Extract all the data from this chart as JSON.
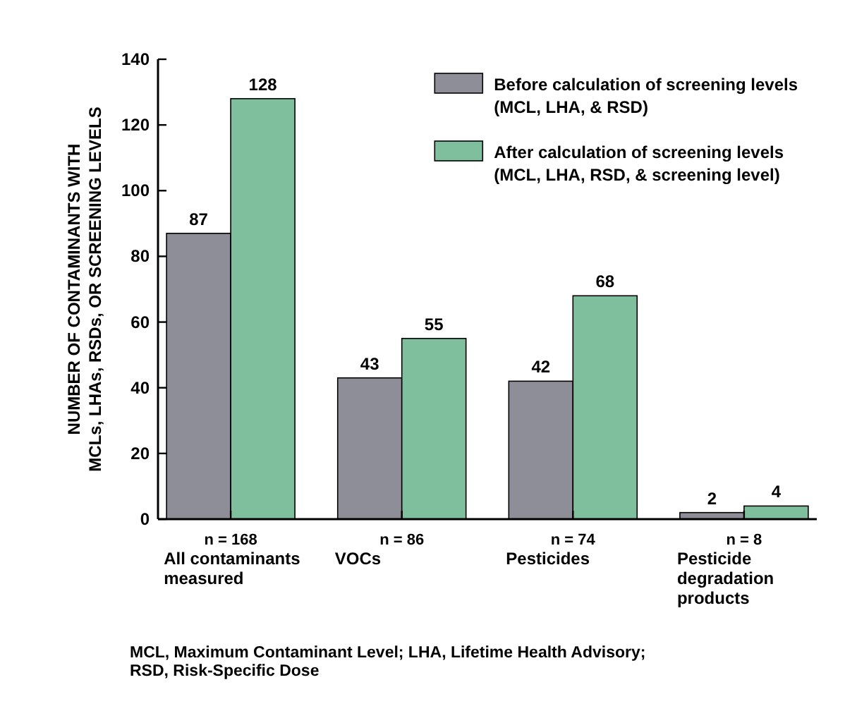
{
  "chart_data": {
    "type": "bar",
    "ylabel": "NUMBER OF CONTAMINANTS WITH\nMCLs, LHAs, RSDs, OR SCREENING LEVELS",
    "categories": [
      "n = 168\nAll contaminants\nmeasured",
      "n = 86\nVOCs",
      "n = 74\nPesticides",
      "n = 8\nPesticide\ndegradation\nproducts"
    ],
    "series": [
      {
        "name": "Before calculation of screening levels\n(MCL, LHA, & RSD)",
        "color": "#8e8e98",
        "values": [
          87,
          43,
          42,
          2
        ]
      },
      {
        "name": "After calculation of screening levels\n(MCL, LHA, RSD, & screening level)",
        "color": "#7fbf9e",
        "values": [
          128,
          55,
          68,
          4
        ]
      }
    ],
    "ylim": [
      0,
      140
    ],
    "yticks": [
      0,
      20,
      40,
      60,
      80,
      100,
      120,
      140
    ],
    "data_labels": true,
    "legend": "top right",
    "grid": false,
    "annotations": [
      "MCL, Maximum Contaminant Level; LHA, Lifetime Health Advisory;\nRSD, Risk-Specific Dose"
    ]
  }
}
